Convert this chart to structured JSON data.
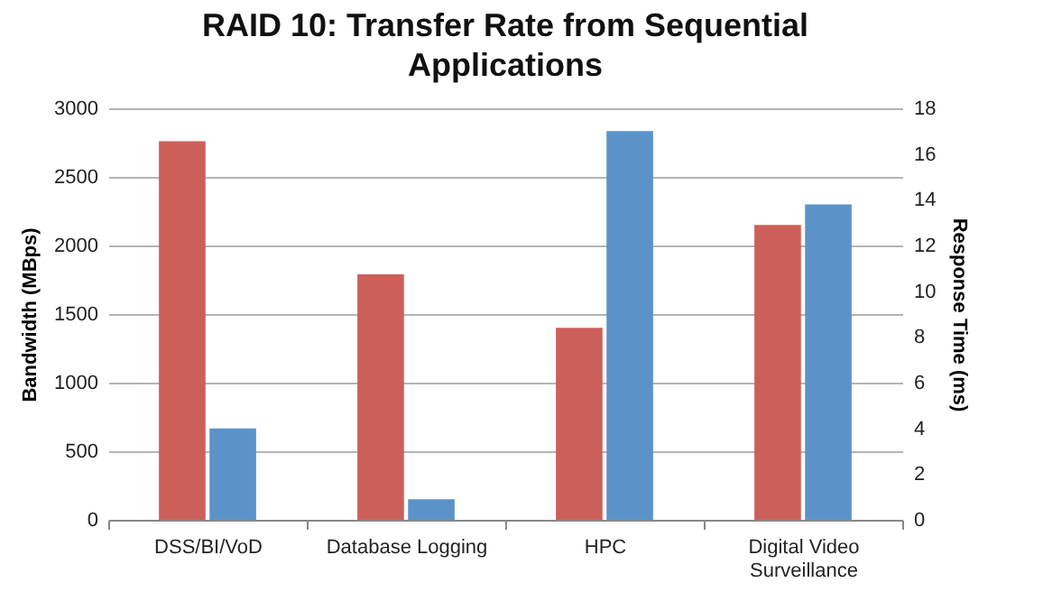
{
  "chart_data": {
    "type": "bar",
    "title": "RAID 10: Transfer Rate from Sequential Applications",
    "categories": [
      "DSS/BI/VoD",
      "Database Logging",
      "HPC",
      "Digital Video Surveillance"
    ],
    "series": [
      {
        "color": "#cc5f5a",
        "values": [
          2760,
          1790,
          1400,
          2150
        ]
      },
      {
        "color": "#5b93c9",
        "values": [
          4.0,
          0.9,
          17.0,
          13.8
        ],
        "axis": "y2"
      }
    ],
    "ylabel": "Bandwidth (MBps)",
    "y2label": "Response Time (ms)",
    "ylim": [
      0,
      3000
    ],
    "yticks": [
      0,
      500,
      1000,
      1500,
      2000,
      2500,
      3000
    ],
    "y2lim": [
      0,
      18
    ],
    "y2ticks": [
      0,
      2,
      4,
      6,
      8,
      10,
      12,
      14,
      16,
      18
    ],
    "grid": "y"
  }
}
